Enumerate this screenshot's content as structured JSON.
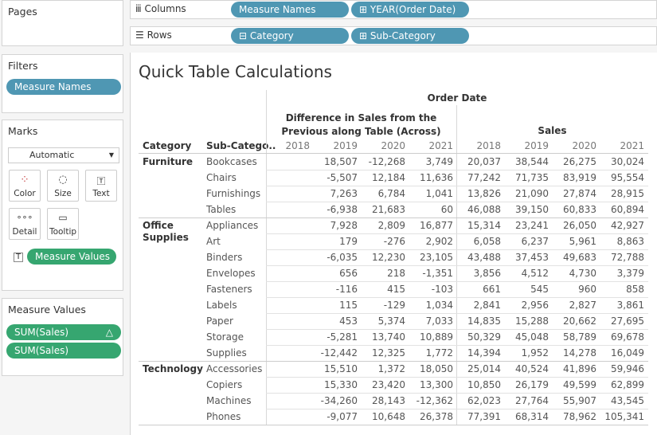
{
  "sidebar": {
    "pages": "Pages",
    "filters": {
      "title": "Filters",
      "pills": [
        "Measure Names"
      ]
    },
    "marks": {
      "title": "Marks",
      "mark_type": "Automatic",
      "buttons": [
        "Color",
        "Size",
        "Text",
        "Detail",
        "Tooltip"
      ],
      "pill": "Measure Values"
    },
    "measure_values": {
      "title": "Measure Values",
      "pills": [
        "SUM(Sales)",
        "SUM(Sales)"
      ]
    }
  },
  "shelves": {
    "columns": {
      "label": "Columns",
      "pills": [
        "Measure Names",
        "YEAR(Order Date)"
      ]
    },
    "rows": {
      "label": "Rows",
      "pills": [
        "Category",
        "Sub-Category"
      ]
    }
  },
  "view": {
    "title": "Quick Table Calculations",
    "column_header": "Order Date",
    "measures": [
      "Difference in Sales from the Previous along Table (Across)",
      "Sales"
    ],
    "row_headers": [
      "Category",
      "Sub-Catego.."
    ],
    "years": [
      "2018",
      "2019",
      "2020",
      "2021"
    ],
    "groups": [
      {
        "category": "Furniture",
        "rows": [
          {
            "name": "Bookcases",
            "diff": [
              "18,507",
              "-12,268",
              "3,749"
            ],
            "sales": [
              "20,037",
              "38,544",
              "26,275",
              "30,024"
            ]
          },
          {
            "name": "Chairs",
            "diff": [
              "-5,507",
              "12,184",
              "11,636"
            ],
            "sales": [
              "77,242",
              "71,735",
              "83,919",
              "95,554"
            ]
          },
          {
            "name": "Furnishings",
            "diff": [
              "7,263",
              "6,784",
              "1,041"
            ],
            "sales": [
              "13,826",
              "21,090",
              "27,874",
              "28,915"
            ]
          },
          {
            "name": "Tables",
            "diff": [
              "-6,938",
              "21,683",
              "60"
            ],
            "sales": [
              "46,088",
              "39,150",
              "60,833",
              "60,894"
            ]
          }
        ]
      },
      {
        "category": "Office Supplies",
        "rows": [
          {
            "name": "Appliances",
            "diff": [
              "7,928",
              "2,809",
              "16,877"
            ],
            "sales": [
              "15,314",
              "23,241",
              "26,050",
              "42,927"
            ]
          },
          {
            "name": "Art",
            "diff": [
              "179",
              "-276",
              "2,902"
            ],
            "sales": [
              "6,058",
              "6,237",
              "5,961",
              "8,863"
            ]
          },
          {
            "name": "Binders",
            "diff": [
              "-6,035",
              "12,230",
              "23,105"
            ],
            "sales": [
              "43,488",
              "37,453",
              "49,683",
              "72,788"
            ]
          },
          {
            "name": "Envelopes",
            "diff": [
              "656",
              "218",
              "-1,351"
            ],
            "sales": [
              "3,856",
              "4,512",
              "4,730",
              "3,379"
            ]
          },
          {
            "name": "Fasteners",
            "diff": [
              "-116",
              "415",
              "-103"
            ],
            "sales": [
              "661",
              "545",
              "960",
              "858"
            ]
          },
          {
            "name": "Labels",
            "diff": [
              "115",
              "-129",
              "1,034"
            ],
            "sales": [
              "2,841",
              "2,956",
              "2,827",
              "3,861"
            ]
          },
          {
            "name": "Paper",
            "diff": [
              "453",
              "5,374",
              "7,033"
            ],
            "sales": [
              "14,835",
              "15,288",
              "20,662",
              "27,695"
            ]
          },
          {
            "name": "Storage",
            "diff": [
              "-5,281",
              "13,740",
              "10,889"
            ],
            "sales": [
              "50,329",
              "45,048",
              "58,789",
              "69,678"
            ]
          },
          {
            "name": "Supplies",
            "diff": [
              "-12,442",
              "12,325",
              "1,772"
            ],
            "sales": [
              "14,394",
              "1,952",
              "14,278",
              "16,049"
            ]
          }
        ]
      },
      {
        "category": "Technology",
        "rows": [
          {
            "name": "Accessories",
            "diff": [
              "15,510",
              "1,372",
              "18,050"
            ],
            "sales": [
              "25,014",
              "40,524",
              "41,896",
              "59,946"
            ]
          },
          {
            "name": "Copiers",
            "diff": [
              "15,330",
              "23,420",
              "13,300"
            ],
            "sales": [
              "10,850",
              "26,179",
              "49,599",
              "62,899"
            ]
          },
          {
            "name": "Machines",
            "diff": [
              "-34,260",
              "28,143",
              "-12,362"
            ],
            "sales": [
              "62,023",
              "27,764",
              "55,907",
              "43,545"
            ]
          },
          {
            "name": "Phones",
            "diff": [
              "-9,077",
              "10,648",
              "26,378"
            ],
            "sales": [
              "77,391",
              "68,314",
              "78,962",
              "105,341"
            ]
          }
        ]
      }
    ]
  }
}
